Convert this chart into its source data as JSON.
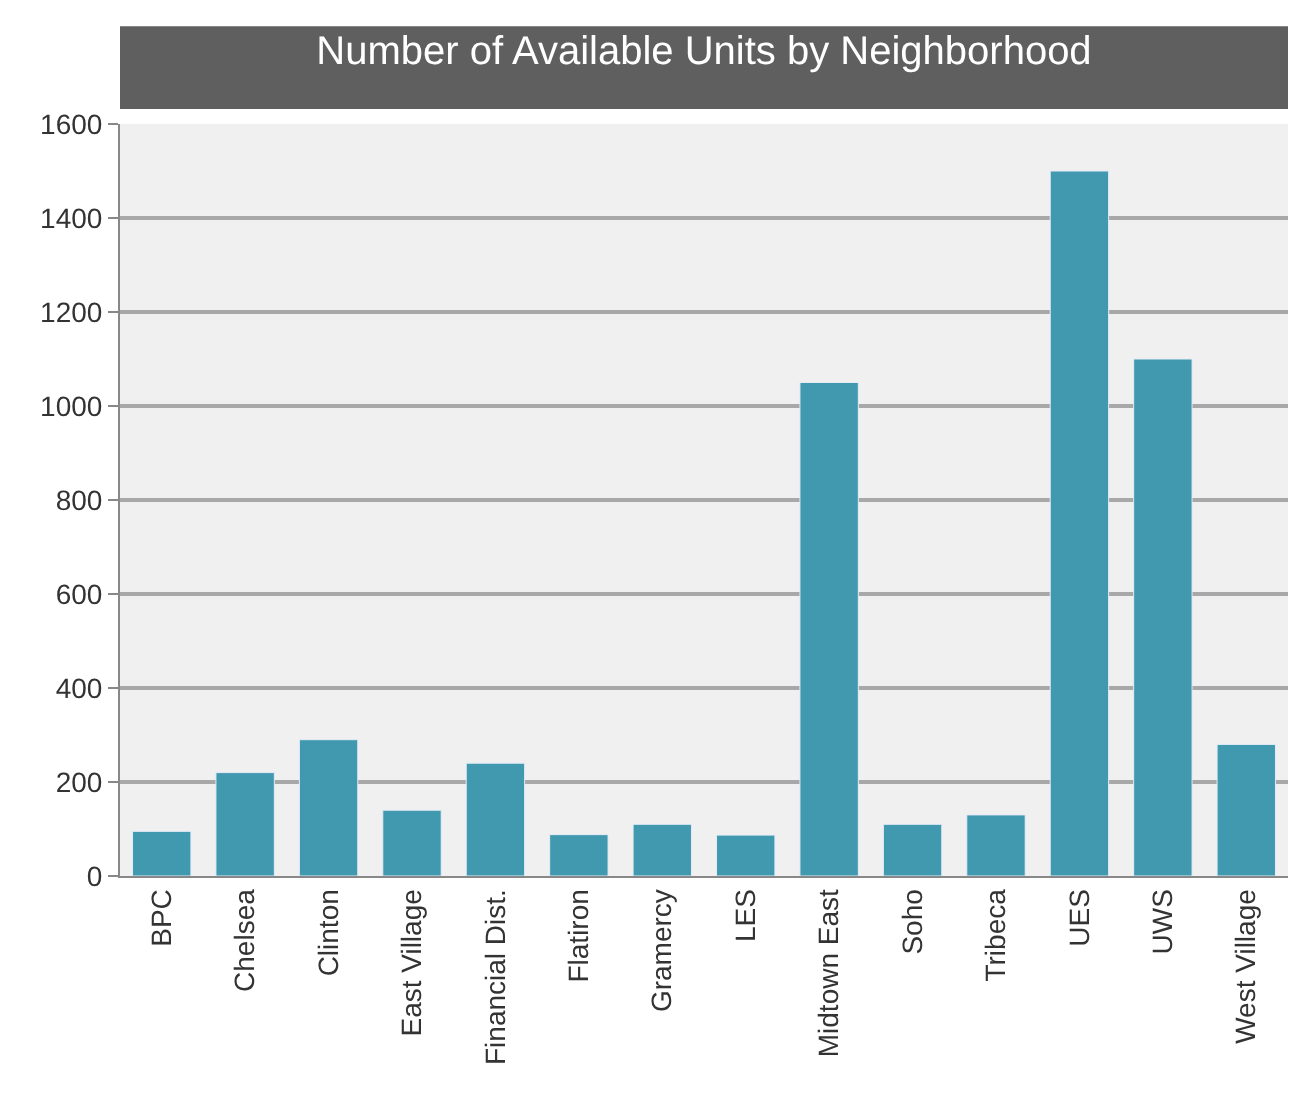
{
  "chart_data": {
    "type": "bar",
    "title": "Number of Available Units by Neighborhood",
    "categories": [
      "BPC",
      "Chelsea",
      "Clinton",
      "East Village",
      "Financial Dist.",
      "Flatiron",
      "Gramercy",
      "LES",
      "Midtown East",
      "Soho",
      "Tribeca",
      "UES",
      "UWS",
      "West Village"
    ],
    "values": [
      95,
      220,
      290,
      140,
      240,
      88,
      110,
      87,
      1050,
      110,
      130,
      1500,
      1100,
      280
    ],
    "color": "#4199b0",
    "ylim": [
      0,
      1600
    ],
    "yticks": [
      0,
      200,
      400,
      600,
      800,
      1000,
      1200,
      1400,
      1600
    ],
    "grid": "y",
    "legend": false
  }
}
